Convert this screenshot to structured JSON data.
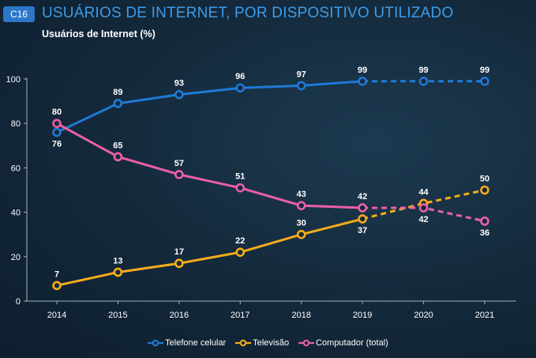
{
  "header": {
    "badge": "C16",
    "title": "USUÁRIOS DE INTERNET, POR DISPOSITIVO UTILIZADO",
    "subtitle": "Usuários de Internet (%)"
  },
  "chart_data": {
    "type": "line",
    "title": "USUÁRIOS DE INTERNET, POR DISPOSITIVO UTILIZADO",
    "ylabel": "Usuários de Internet (%)",
    "xlabel": "",
    "categories": [
      "2014",
      "2015",
      "2016",
      "2017",
      "2018",
      "2019",
      "2020",
      "2021"
    ],
    "ylim": [
      0,
      100
    ],
    "yticks": [
      0,
      20,
      40,
      60,
      80,
      100
    ],
    "grid": false,
    "legend_position": "bottom-center",
    "series": [
      {
        "name": "Telefone celular",
        "color": "#1f7ad6",
        "values": [
          76,
          89,
          93,
          96,
          97,
          99,
          99,
          99
        ],
        "labels": [
          "76",
          "89",
          "93",
          "96",
          "97",
          "99",
          "99",
          "99"
        ],
        "label_pos": [
          "below",
          "above",
          "above",
          "above",
          "above",
          "above",
          "above",
          "above"
        ],
        "dashed_from_index": 5
      },
      {
        "name": "Televisão",
        "color": "#f4ac1c",
        "values": [
          7,
          13,
          17,
          22,
          30,
          37,
          44,
          50
        ],
        "labels": [
          "7",
          "13",
          "17",
          "22",
          "30",
          "37",
          "44",
          "50"
        ],
        "label_pos": [
          "above",
          "above",
          "above",
          "above",
          "above",
          "below",
          "above",
          "above"
        ],
        "dashed_from_index": 5
      },
      {
        "name": "Computador (total)",
        "color": "#ea5fa8",
        "values": [
          80,
          65,
          57,
          51,
          43,
          42,
          42,
          36
        ],
        "labels": [
          "80",
          "65",
          "57",
          "51",
          "43",
          "42",
          "42",
          "36"
        ],
        "label_pos": [
          "above",
          "above",
          "above",
          "above",
          "above",
          "above",
          "below",
          "below"
        ],
        "dashed_from_index": 5
      }
    ]
  }
}
